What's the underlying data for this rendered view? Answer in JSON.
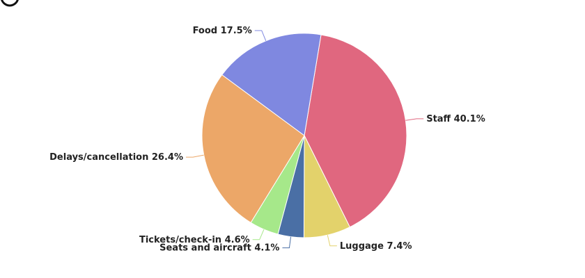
{
  "chart_data": {
    "type": "pie",
    "categories": [
      "Staff",
      "Luggage",
      "Seats and aircraft",
      "Tickets/check-in",
      "Delays/cancellation",
      "Food"
    ],
    "values": [
      40.1,
      7.4,
      4.1,
      4.6,
      26.4,
      17.5
    ],
    "value_labels": [
      "40.1%",
      "7.4%",
      "4.1%",
      "4.6%",
      "26.4%",
      "17.5%"
    ],
    "colors": [
      "#e0677f",
      "#e3d26b",
      "#4a6fa5",
      "#a6e88a",
      "#eca768",
      "#7f88e0"
    ]
  }
}
